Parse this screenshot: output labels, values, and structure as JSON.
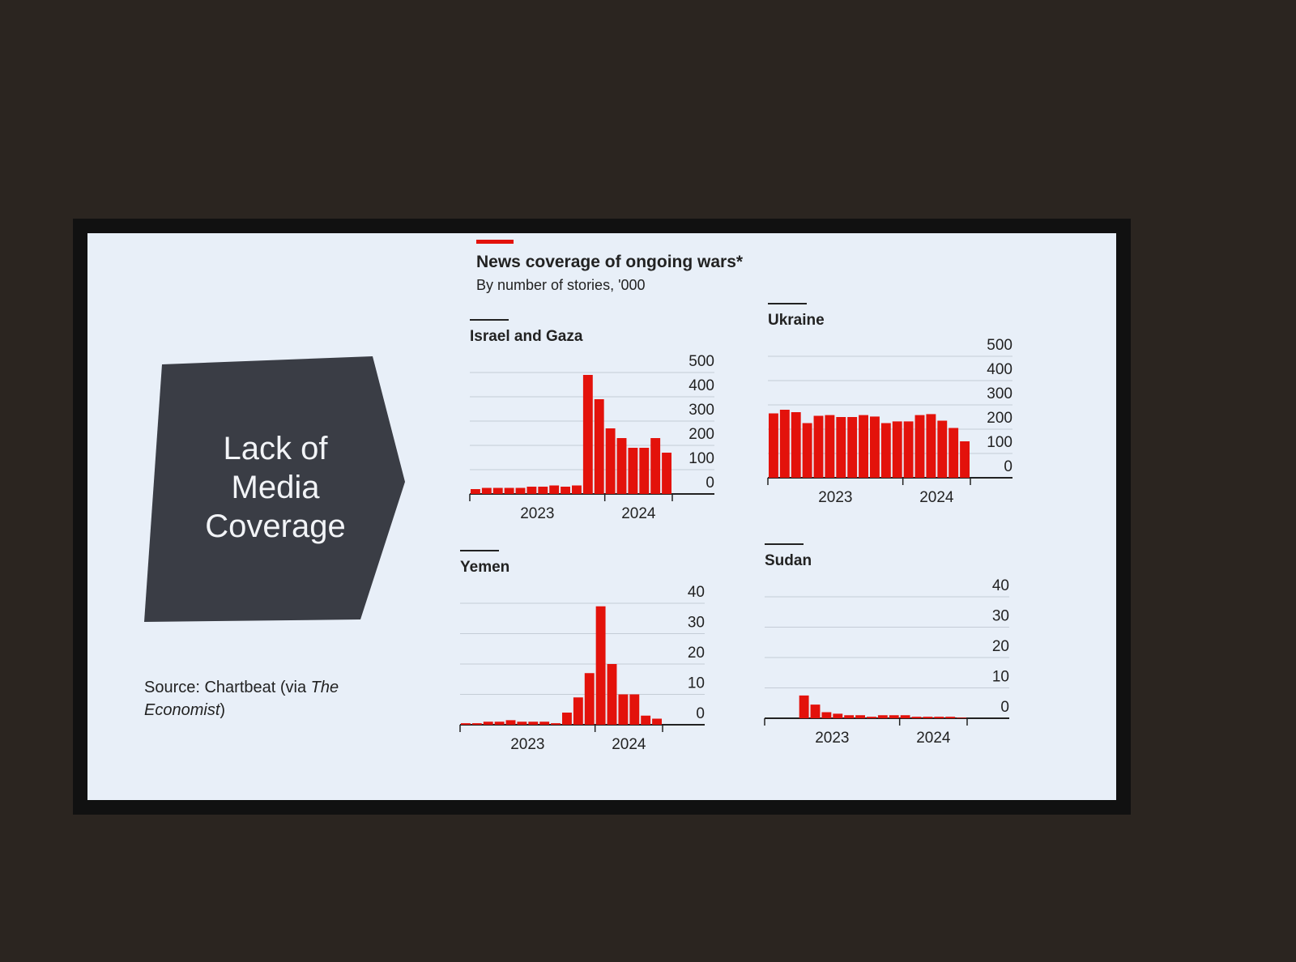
{
  "slide": {
    "heading": "Lack of Media Coverage",
    "source": {
      "text": "Source: Chartbeat (via ",
      "publication": "The Economist",
      "close": ")"
    }
  },
  "figure": {
    "title": "News coverage of ongoing wars*",
    "subtitle": "By number of stories, '000"
  },
  "chart_data": [
    {
      "type": "bar",
      "title": "Israel and Gaza",
      "color": "#e3120b",
      "categories": [
        null,
        null,
        null,
        null,
        null,
        null,
        null,
        null,
        null,
        null,
        null,
        null,
        null,
        null,
        null,
        null,
        null,
        null
      ],
      "values": [
        20,
        25,
        25,
        25,
        25,
        30,
        30,
        35,
        30,
        35,
        490,
        390,
        270,
        230,
        190,
        190,
        230,
        170
      ],
      "ylim": [
        0,
        500
      ],
      "yticks": [
        0,
        100,
        200,
        300,
        400,
        500
      ],
      "grid": true,
      "xlim": [
        0,
        18
      ],
      "xticks": [
        0,
        12,
        18
      ],
      "year_labels": [
        "2023",
        "2024"
      ]
    },
    {
      "type": "bar",
      "title": "Ukraine",
      "color": "#e3120b",
      "categories": [
        null,
        null,
        null,
        null,
        null,
        null,
        null,
        null,
        null,
        null,
        null,
        null,
        null,
        null,
        null,
        null,
        null,
        null
      ],
      "values": [
        265,
        280,
        270,
        225,
        255,
        258,
        250,
        250,
        258,
        252,
        225,
        232,
        232,
        258,
        262,
        235,
        205,
        150
      ],
      "ylim": [
        0,
        500
      ],
      "yticks": [
        0,
        100,
        200,
        300,
        400,
        500
      ],
      "grid": true,
      "xlim": [
        0,
        18
      ],
      "xticks": [
        0,
        12,
        18
      ],
      "year_labels": [
        "2023",
        "2024"
      ]
    },
    {
      "type": "bar",
      "title": "Yemen",
      "color": "#e3120b",
      "categories": [
        null,
        null,
        null,
        null,
        null,
        null,
        null,
        null,
        null,
        null,
        null,
        null,
        null,
        null,
        null,
        null,
        null,
        null
      ],
      "values": [
        0.5,
        0.5,
        1,
        1,
        1.5,
        1,
        1,
        1,
        0.5,
        4,
        9,
        17,
        39,
        20,
        10,
        10,
        3,
        2
      ],
      "ylim": [
        0,
        40
      ],
      "yticks": [
        0,
        10,
        20,
        30,
        40
      ],
      "grid": true,
      "xlim": [
        0,
        18
      ],
      "xticks": [
        0,
        12,
        18
      ],
      "year_labels": [
        "2023",
        "2024"
      ]
    },
    {
      "type": "bar",
      "title": "Sudan",
      "color": "#e3120b",
      "categories": [
        null,
        null,
        null,
        null,
        null,
        null,
        null,
        null,
        null,
        null,
        null,
        null,
        null,
        null,
        null,
        null,
        null,
        null
      ],
      "values": [
        0,
        0,
        0,
        7.5,
        4.5,
        2,
        1.5,
        1,
        1,
        0.5,
        1,
        1,
        1,
        0.5,
        0.5,
        0.5,
        0.5,
        0.2
      ],
      "ylim": [
        0,
        40
      ],
      "yticks": [
        0,
        10,
        20,
        30,
        40
      ],
      "grid": true,
      "xlim": [
        0,
        18
      ],
      "xticks": [
        0,
        12,
        18
      ],
      "year_labels": [
        "2023",
        "2024"
      ]
    }
  ]
}
